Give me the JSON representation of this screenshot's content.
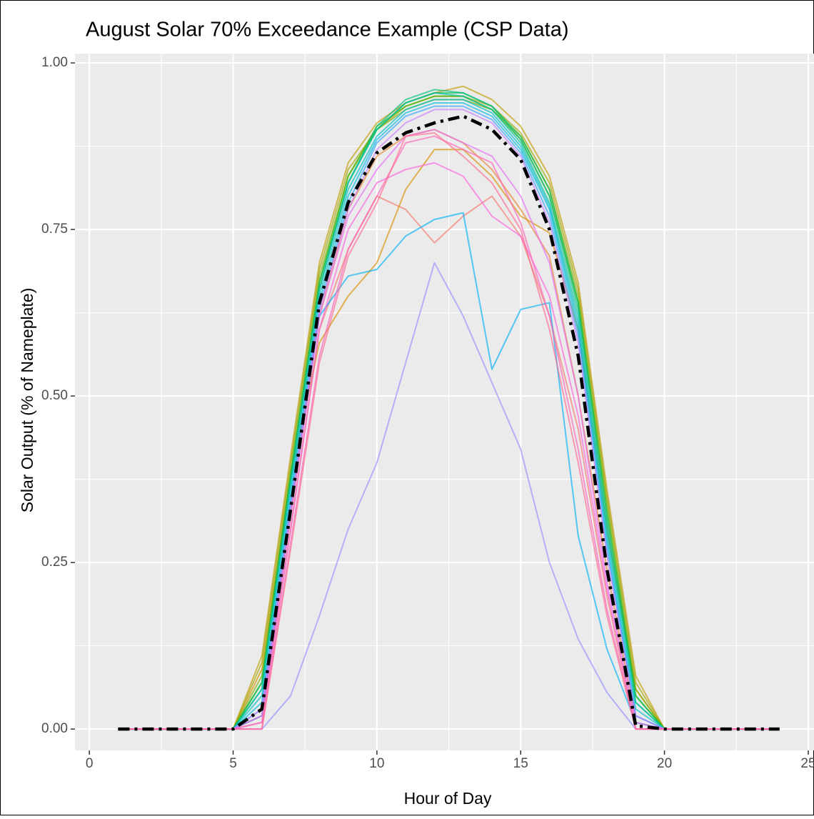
{
  "chart_data": {
    "type": "line",
    "title": "August Solar 70% Exceedance Example (CSP Data)",
    "x_label": "Hour of Day",
    "y_label": "Solar Output (% of Nameplate)",
    "x": [
      1,
      2,
      3,
      4,
      5,
      6,
      7,
      8,
      9,
      10,
      11,
      12,
      13,
      14,
      15,
      16,
      17,
      18,
      19,
      20,
      21,
      22,
      23,
      24
    ],
    "xlim": [
      -0.5,
      25.2
    ],
    "xticks": [
      0,
      5,
      10,
      15,
      20,
      25
    ],
    "ylim": [
      -0.032,
      1.014
    ],
    "yticks": [
      {
        "value": 0,
        "label": "0.00"
      },
      {
        "value": 0.25,
        "label": "0.25"
      },
      {
        "value": 0.5,
        "label": "0.50"
      },
      {
        "value": 0.75,
        "label": "0.75"
      },
      {
        "value": 1,
        "label": "1.00"
      }
    ],
    "grid": true,
    "series": [
      {
        "color": "#F8766D",
        "values": [
          0,
          0,
          0,
          0,
          0,
          0.01,
          0.3,
          0.6,
          0.72,
          0.8,
          0.78,
          0.73,
          0.77,
          0.8,
          0.74,
          0.62,
          0.45,
          0.2,
          0,
          0,
          0,
          0,
          0,
          0
        ]
      },
      {
        "color": "#EA8331",
        "values": [
          0,
          0,
          0,
          0,
          0,
          0.02,
          0.32,
          0.62,
          0.78,
          0.86,
          0.89,
          0.9,
          0.88,
          0.84,
          0.78,
          0.71,
          0.5,
          0.24,
          0.01,
          0,
          0,
          0,
          0,
          0
        ]
      },
      {
        "color": "#D89000",
        "values": [
          0,
          0,
          0,
          0,
          0,
          0.09,
          0.38,
          0.58,
          0.65,
          0.7,
          0.81,
          0.87,
          0.87,
          0.83,
          0.77,
          0.745,
          0.6,
          0.3,
          0.06,
          0,
          0,
          0,
          0,
          0
        ]
      },
      {
        "color": "#C09B00",
        "values": [
          0,
          0,
          0,
          0,
          0,
          0.11,
          0.41,
          0.7,
          0.85,
          0.91,
          0.94,
          0.955,
          0.965,
          0.945,
          0.905,
          0.83,
          0.67,
          0.36,
          0.08,
          0,
          0,
          0,
          0,
          0
        ]
      },
      {
        "color": "#A3A500",
        "values": [
          0,
          0,
          0,
          0,
          0,
          0.1,
          0.4,
          0.69,
          0.84,
          0.9,
          0.935,
          0.95,
          0.95,
          0.935,
          0.895,
          0.82,
          0.66,
          0.35,
          0.07,
          0,
          0,
          0,
          0,
          0
        ]
      },
      {
        "color": "#7CAE00",
        "values": [
          0,
          0,
          0,
          0,
          0,
          0.08,
          0.39,
          0.68,
          0.83,
          0.9,
          0.93,
          0.945,
          0.945,
          0.93,
          0.89,
          0.81,
          0.65,
          0.34,
          0.06,
          0,
          0,
          0,
          0,
          0
        ]
      },
      {
        "color": "#39B600",
        "values": [
          0,
          0,
          0,
          0,
          0,
          0.07,
          0.38,
          0.67,
          0.83,
          0.905,
          0.935,
          0.95,
          0.95,
          0.93,
          0.885,
          0.8,
          0.64,
          0.33,
          0.05,
          0,
          0,
          0,
          0,
          0
        ]
      },
      {
        "color": "#00BB4E",
        "values": [
          0,
          0,
          0,
          0,
          0,
          0.07,
          0.38,
          0.67,
          0.82,
          0.9,
          0.94,
          0.955,
          0.955,
          0.935,
          0.89,
          0.81,
          0.64,
          0.32,
          0.05,
          0,
          0,
          0,
          0,
          0
        ]
      },
      {
        "color": "#00BF7D",
        "values": [
          0,
          0,
          0,
          0,
          0,
          0.06,
          0.37,
          0.66,
          0.82,
          0.905,
          0.945,
          0.96,
          0.955,
          0.935,
          0.885,
          0.8,
          0.63,
          0.31,
          0.04,
          0,
          0,
          0,
          0,
          0
        ]
      },
      {
        "color": "#00C1A3",
        "values": [
          0,
          0,
          0,
          0,
          0,
          0.06,
          0.37,
          0.66,
          0.82,
          0.9,
          0.94,
          0.955,
          0.95,
          0.93,
          0.88,
          0.79,
          0.62,
          0.3,
          0.04,
          0,
          0,
          0,
          0,
          0
        ]
      },
      {
        "color": "#00BFC4",
        "values": [
          0,
          0,
          0,
          0,
          0,
          0.05,
          0.36,
          0.65,
          0.81,
          0.89,
          0.93,
          0.945,
          0.945,
          0.925,
          0.875,
          0.785,
          0.61,
          0.29,
          0.03,
          0,
          0,
          0,
          0,
          0
        ]
      },
      {
        "color": "#00BAE0",
        "values": [
          0,
          0,
          0,
          0,
          0,
          0.04,
          0.35,
          0.64,
          0.8,
          0.885,
          0.925,
          0.94,
          0.94,
          0.92,
          0.87,
          0.78,
          0.6,
          0.28,
          0.02,
          0,
          0,
          0,
          0,
          0
        ]
      },
      {
        "color": "#00B0F6",
        "values": [
          0,
          0,
          0,
          0,
          0,
          0.02,
          0.33,
          0.62,
          0.68,
          0.69,
          0.74,
          0.765,
          0.775,
          0.54,
          0.63,
          0.64,
          0.29,
          0.12,
          0.01,
          0,
          0,
          0,
          0,
          0
        ]
      },
      {
        "color": "#35A2FF",
        "values": [
          0,
          0,
          0,
          0,
          0,
          0.03,
          0.34,
          0.63,
          0.79,
          0.88,
          0.92,
          0.935,
          0.935,
          0.915,
          0.865,
          0.77,
          0.59,
          0.27,
          0.02,
          0,
          0,
          0,
          0,
          0
        ]
      },
      {
        "color": "#9590FF",
        "values": [
          0,
          0,
          0,
          0,
          0,
          0,
          0.05,
          0.17,
          0.3,
          0.4,
          0.55,
          0.7,
          0.62,
          0.52,
          0.42,
          0.25,
          0.135,
          0.055,
          0,
          0,
          0,
          0,
          0,
          0
        ]
      },
      {
        "color": "#C77CFF",
        "values": [
          0,
          0,
          0,
          0,
          0,
          0.03,
          0.33,
          0.63,
          0.78,
          0.87,
          0.91,
          0.93,
          0.93,
          0.91,
          0.86,
          0.76,
          0.58,
          0.26,
          0.02,
          0,
          0,
          0,
          0,
          0
        ]
      },
      {
        "color": "#E76BF3",
        "values": [
          0,
          0,
          0,
          0,
          0,
          0.02,
          0.32,
          0.62,
          0.77,
          0.84,
          0.89,
          0.9,
          0.88,
          0.86,
          0.8,
          0.7,
          0.5,
          0.22,
          0.01,
          0,
          0,
          0,
          0,
          0
        ]
      },
      {
        "color": "#FA62DB",
        "values": [
          0,
          0,
          0,
          0,
          0,
          0.01,
          0.3,
          0.6,
          0.75,
          0.82,
          0.84,
          0.85,
          0.83,
          0.77,
          0.74,
          0.65,
          0.47,
          0.21,
          0,
          0,
          0,
          0,
          0,
          0
        ]
      },
      {
        "color": "#FF62BC",
        "values": [
          0,
          0,
          0,
          0,
          0,
          0,
          0.28,
          0.56,
          0.72,
          0.8,
          0.88,
          0.89,
          0.87,
          0.85,
          0.76,
          0.62,
          0.42,
          0.18,
          0,
          0,
          0,
          0,
          0,
          0
        ]
      },
      {
        "color": "#FF6C91",
        "values": [
          0,
          0,
          0,
          0,
          0,
          0,
          0.27,
          0.55,
          0.71,
          0.79,
          0.89,
          0.895,
          0.86,
          0.82,
          0.75,
          0.6,
          0.4,
          0.17,
          0,
          0,
          0,
          0,
          0,
          0
        ]
      },
      {
        "color": "#000000",
        "dashed": true,
        "values": [
          0,
          0,
          0,
          0,
          0,
          0.03,
          0.33,
          0.64,
          0.79,
          0.865,
          0.895,
          0.91,
          0.92,
          0.9,
          0.855,
          0.75,
          0.56,
          0.24,
          0.005,
          0,
          0,
          0,
          0,
          0
        ]
      }
    ]
  }
}
